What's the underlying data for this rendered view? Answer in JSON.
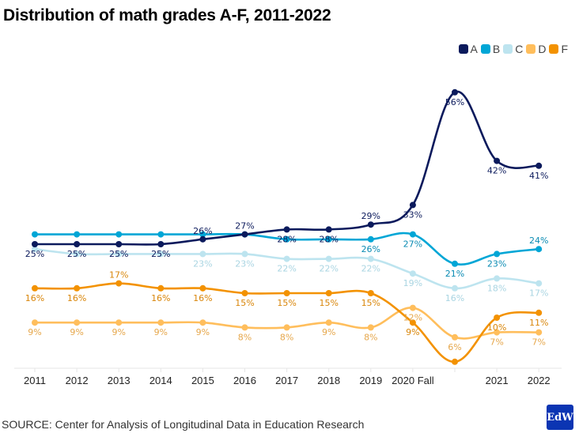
{
  "title": "Distribution of math grades A-F, 2011-2022",
  "source": "SOURCE: Center for Analysis of Longitudinal Data in Education Research",
  "logo_text": "EdW",
  "chart_data": {
    "type": "line",
    "title": "Distribution of math grades A-F, 2011-2022",
    "xlabel": "",
    "ylabel": "",
    "ylim": [
      0,
      60
    ],
    "grid": false,
    "legend_position": "top-right",
    "categories": [
      "2011",
      "2012",
      "2013",
      "2014",
      "2015",
      "2016",
      "2017",
      "2018",
      "2019",
      "2020 Fall",
      "",
      "2021",
      "2022"
    ],
    "series": [
      {
        "name": "A",
        "color": "#0b1a5c",
        "label_color": "#0b1a5c",
        "values": [
          25,
          25,
          25,
          25,
          26,
          27,
          28,
          28,
          29,
          33,
          56,
          42,
          41
        ],
        "show_labels": [
          true,
          true,
          true,
          true,
          true,
          true,
          true,
          true,
          true,
          true,
          true,
          true,
          true
        ],
        "label_pos": [
          "below",
          "below",
          "below",
          "below",
          "above",
          "above",
          "below",
          "below",
          "above",
          "below",
          "below",
          "below",
          "below"
        ]
      },
      {
        "name": "B",
        "color": "#00a6d6",
        "label_color": "#0a8bb3",
        "values": [
          27,
          27,
          27,
          27,
          27,
          27,
          26,
          26,
          26,
          27,
          21,
          23,
          24
        ],
        "show_labels": [
          false,
          false,
          false,
          false,
          false,
          false,
          false,
          false,
          true,
          true,
          true,
          true,
          true
        ],
        "label_pos": [
          "below",
          "below",
          "below",
          "below",
          "below",
          "below",
          "below",
          "below",
          "below",
          "below",
          "below",
          "below",
          "above"
        ]
      },
      {
        "name": "C",
        "color": "#bde4ef",
        "label_color": "#aad5e2",
        "values": [
          24,
          23,
          23,
          23,
          23,
          23,
          22,
          22,
          22,
          19,
          16,
          18,
          17
        ],
        "show_labels": [
          false,
          false,
          false,
          false,
          true,
          true,
          true,
          true,
          true,
          true,
          true,
          true,
          true
        ],
        "label_pos": [
          "below",
          "below",
          "below",
          "below",
          "below",
          "below",
          "below",
          "below",
          "below",
          "below",
          "below",
          "below",
          "below"
        ]
      },
      {
        "name": "D",
        "color": "#ffbe5c",
        "label_color": "#e6a74b",
        "values": [
          9,
          9,
          9,
          9,
          9,
          8,
          8,
          9,
          8,
          12,
          6,
          7,
          7
        ],
        "show_labels": [
          true,
          true,
          true,
          true,
          true,
          true,
          true,
          true,
          true,
          true,
          true,
          true,
          true
        ],
        "label_pos": [
          "below",
          "below",
          "below",
          "below",
          "below",
          "below",
          "below",
          "below",
          "below",
          "below",
          "below",
          "below",
          "below"
        ]
      },
      {
        "name": "F",
        "color": "#f39200",
        "label_color": "#d9860a",
        "values": [
          16,
          16,
          17,
          16,
          16,
          15,
          15,
          15,
          15,
          9,
          1,
          10,
          11
        ],
        "show_labels": [
          true,
          true,
          true,
          true,
          true,
          true,
          true,
          true,
          true,
          true,
          false,
          true,
          true
        ],
        "label_pos": [
          "below",
          "below",
          "above",
          "below",
          "below",
          "below",
          "below",
          "below",
          "below",
          "below",
          "below",
          "below",
          "below"
        ]
      }
    ]
  }
}
